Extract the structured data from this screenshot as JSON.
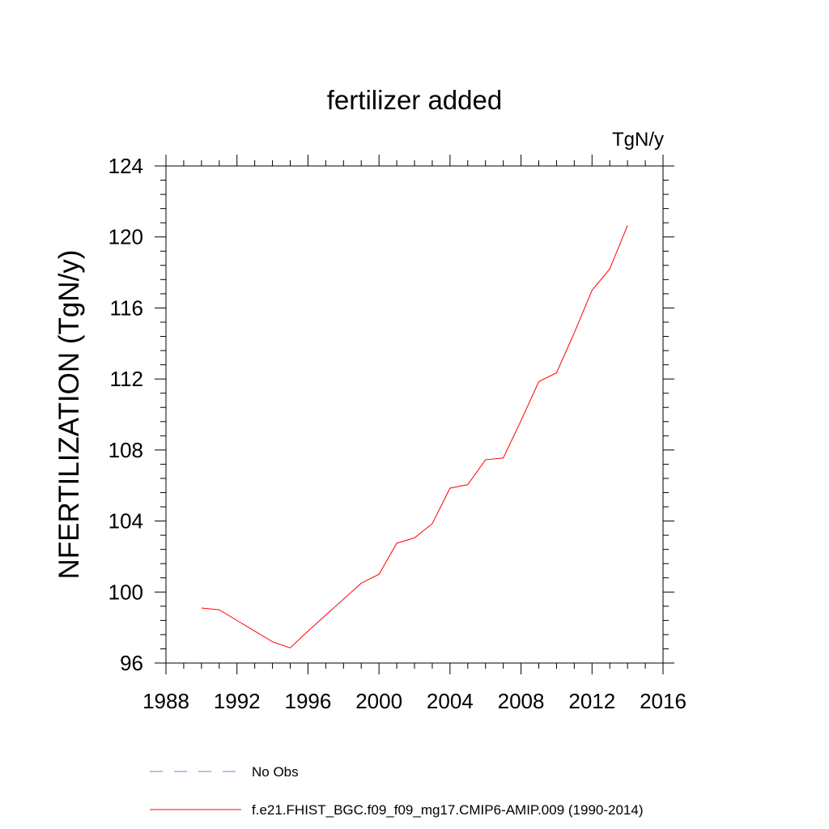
{
  "chart_data": {
    "type": "line",
    "title": "fertilizer added",
    "units_label": "TgN/y",
    "ylabel": "NFERTILIZATION  (TgN/y)",
    "xlabel": "",
    "xlim": [
      1988,
      2016
    ],
    "ylim": [
      96,
      124
    ],
    "xticks": [
      "1988",
      "1992",
      "1996",
      "2000",
      "2004",
      "2008",
      "2012",
      "2016"
    ],
    "yticks": [
      "96",
      "100",
      "104",
      "108",
      "112",
      "116",
      "120",
      "124"
    ],
    "grid": false,
    "legend_position": "bottom",
    "series": [
      {
        "name": "f.e21.FHIST_BGC.f09_f09_mg17.CMIP6-AMIP.009 (1990-2014)",
        "color": "#ff0000",
        "style": "solid",
        "x": [
          1990,
          1991,
          1992,
          1993,
          1994,
          1995,
          1996,
          1997,
          1998,
          1999,
          2000,
          2001,
          2002,
          2003,
          2004,
          2005,
          2006,
          2007,
          2008,
          2009,
          2010,
          2011,
          2012,
          2013,
          2014
        ],
        "y": [
          99.1,
          99.0,
          98.4,
          97.8,
          97.2,
          96.85,
          97.8,
          98.7,
          99.6,
          100.5,
          101.0,
          102.75,
          103.05,
          103.85,
          105.85,
          106.05,
          107.45,
          107.55,
          109.65,
          111.85,
          112.35,
          114.6,
          117.0,
          118.2,
          120.65
        ]
      },
      {
        "name": "No Obs",
        "color": "#7d7dcc",
        "style": "dashed",
        "x": [],
        "y": []
      }
    ]
  }
}
